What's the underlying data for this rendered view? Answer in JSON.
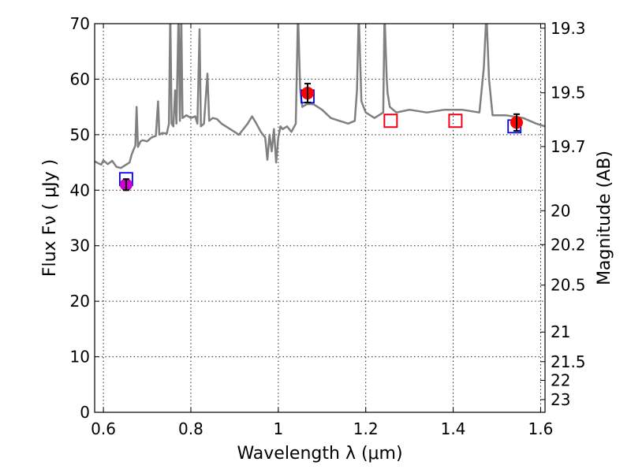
{
  "chart_data": {
    "type": "line",
    "title": "",
    "xlabel": "Wavelength  λ (μm)",
    "ylabel": "Flux  Fν  ( μJy )",
    "ylabel_right": "Magnitude (AB)",
    "xlim": [
      0.58,
      1.61
    ],
    "ylim": [
      0,
      70
    ],
    "grid": true,
    "x_ticks": [
      0.6,
      0.8,
      1.0,
      1.2,
      1.4,
      1.6
    ],
    "x_tick_labels": [
      "0.6",
      "0.8",
      "1",
      "1.2",
      "1.4",
      "1.6"
    ],
    "y_ticks": [
      0,
      10,
      20,
      30,
      40,
      50,
      60,
      70
    ],
    "y_tick_labels": [
      "0",
      "10",
      "20",
      "30",
      "40",
      "50",
      "60",
      "70"
    ],
    "right_ticks": [
      {
        "label": "19.3",
        "mag": 19.3
      },
      {
        "label": "19.5",
        "mag": 19.5
      },
      {
        "label": "19.7",
        "mag": 19.7
      },
      {
        "label": "20",
        "mag": 20.0
      },
      {
        "label": "20.2",
        "mag": 20.2
      },
      {
        "label": "20.5",
        "mag": 20.5
      },
      {
        "label": "21",
        "mag": 21.0
      },
      {
        "label": "21.5",
        "mag": 21.5
      },
      {
        "label": "22",
        "mag": 22.0
      },
      {
        "label": "23",
        "mag": 23.0
      }
    ],
    "series": [
      {
        "kind": "line",
        "color": "#808080",
        "points": [
          [
            0.58,
            45.2
          ],
          [
            0.595,
            44.6
          ],
          [
            0.6,
            45.4
          ],
          [
            0.61,
            44.7
          ],
          [
            0.62,
            45.3
          ],
          [
            0.63,
            44.2
          ],
          [
            0.64,
            44.0
          ],
          [
            0.65,
            44.5
          ],
          [
            0.66,
            45.0
          ],
          [
            0.665,
            46.5
          ],
          [
            0.67,
            47.5
          ],
          [
            0.673,
            48.0
          ],
          [
            0.676,
            55.0
          ],
          [
            0.679,
            47.8
          ],
          [
            0.685,
            48.8
          ],
          [
            0.69,
            49.0
          ],
          [
            0.7,
            48.8
          ],
          [
            0.71,
            49.5
          ],
          [
            0.72,
            49.8
          ],
          [
            0.725,
            56.0
          ],
          [
            0.728,
            50.0
          ],
          [
            0.735,
            50.3
          ],
          [
            0.745,
            50.2
          ],
          [
            0.75,
            52.0
          ],
          [
            0.753,
            72.0
          ],
          [
            0.756,
            52.0
          ],
          [
            0.76,
            51.5
          ],
          [
            0.764,
            58.0
          ],
          [
            0.767,
            52.0
          ],
          [
            0.772,
            72.0
          ],
          [
            0.775,
            52.5
          ],
          [
            0.778,
            72.0
          ],
          [
            0.781,
            53.0
          ],
          [
            0.79,
            53.5
          ],
          [
            0.8,
            53.0
          ],
          [
            0.81,
            53.3
          ],
          [
            0.815,
            52.0
          ],
          [
            0.82,
            69.0
          ],
          [
            0.823,
            51.5
          ],
          [
            0.83,
            52.0
          ],
          [
            0.838,
            61.0
          ],
          [
            0.842,
            52.5
          ],
          [
            0.85,
            53.0
          ],
          [
            0.86,
            52.8
          ],
          [
            0.87,
            52.0
          ],
          [
            0.88,
            51.5
          ],
          [
            0.89,
            51.0
          ],
          [
            0.9,
            50.5
          ],
          [
            0.91,
            50.0
          ],
          [
            0.92,
            51.0
          ],
          [
            0.93,
            52.0
          ],
          [
            0.94,
            53.3
          ],
          [
            0.95,
            52.0
          ],
          [
            0.96,
            50.5
          ],
          [
            0.97,
            49.5
          ],
          [
            0.975,
            45.5
          ],
          [
            0.98,
            50.0
          ],
          [
            0.985,
            47.0
          ],
          [
            0.99,
            51.0
          ],
          [
            0.995,
            45.0
          ],
          [
            1.0,
            49.5
          ],
          [
            1.005,
            51.5
          ],
          [
            1.01,
            51.0
          ],
          [
            1.02,
            51.5
          ],
          [
            1.03,
            50.5
          ],
          [
            1.04,
            52.0
          ],
          [
            1.045,
            72.0
          ],
          [
            1.05,
            58.0
          ],
          [
            1.055,
            55.0
          ],
          [
            1.065,
            55.5
          ],
          [
            1.08,
            55.5
          ],
          [
            1.1,
            54.5
          ],
          [
            1.12,
            53.0
          ],
          [
            1.14,
            52.5
          ],
          [
            1.16,
            52.0
          ],
          [
            1.175,
            52.5
          ],
          [
            1.18,
            58.0
          ],
          [
            1.184,
            72.0
          ],
          [
            1.19,
            56.0
          ],
          [
            1.2,
            54.0
          ],
          [
            1.22,
            53.0
          ],
          [
            1.24,
            54.0
          ],
          [
            1.243,
            72.0
          ],
          [
            1.248,
            60.0
          ],
          [
            1.25,
            57.5
          ],
          [
            1.255,
            55.0
          ],
          [
            1.27,
            54.0
          ],
          [
            1.3,
            54.5
          ],
          [
            1.34,
            54.0
          ],
          [
            1.38,
            54.5
          ],
          [
            1.42,
            54.5
          ],
          [
            1.46,
            54.0
          ],
          [
            1.47,
            62.0
          ],
          [
            1.476,
            72.0
          ],
          [
            1.482,
            60.0
          ],
          [
            1.49,
            53.5
          ],
          [
            1.52,
            53.5
          ],
          [
            1.56,
            53.0
          ],
          [
            1.59,
            52.0
          ],
          [
            1.61,
            51.5
          ]
        ]
      },
      {
        "kind": "box",
        "color": "#0000ff",
        "points": [
          [
            0.652,
            42.0
          ],
          [
            1.067,
            56.9
          ],
          [
            1.257,
            52.5
          ],
          [
            1.405,
            52.5
          ],
          [
            1.54,
            51.5
          ]
        ]
      },
      {
        "kind": "box",
        "color": "#ff0000",
        "points": [
          [
            1.257,
            52.5
          ],
          [
            1.405,
            52.5
          ]
        ]
      },
      {
        "kind": "errorpoint",
        "color": "#ff0000",
        "points": [
          {
            "x": 1.067,
            "y": 57.5,
            "err": 1.7
          },
          {
            "x": 1.545,
            "y": 52.2,
            "err": 1.5
          }
        ]
      },
      {
        "kind": "errorpoint",
        "color": "#cc00cc",
        "points": [
          {
            "x": 0.652,
            "y": 41.0,
            "err": 1.0
          }
        ]
      }
    ]
  }
}
